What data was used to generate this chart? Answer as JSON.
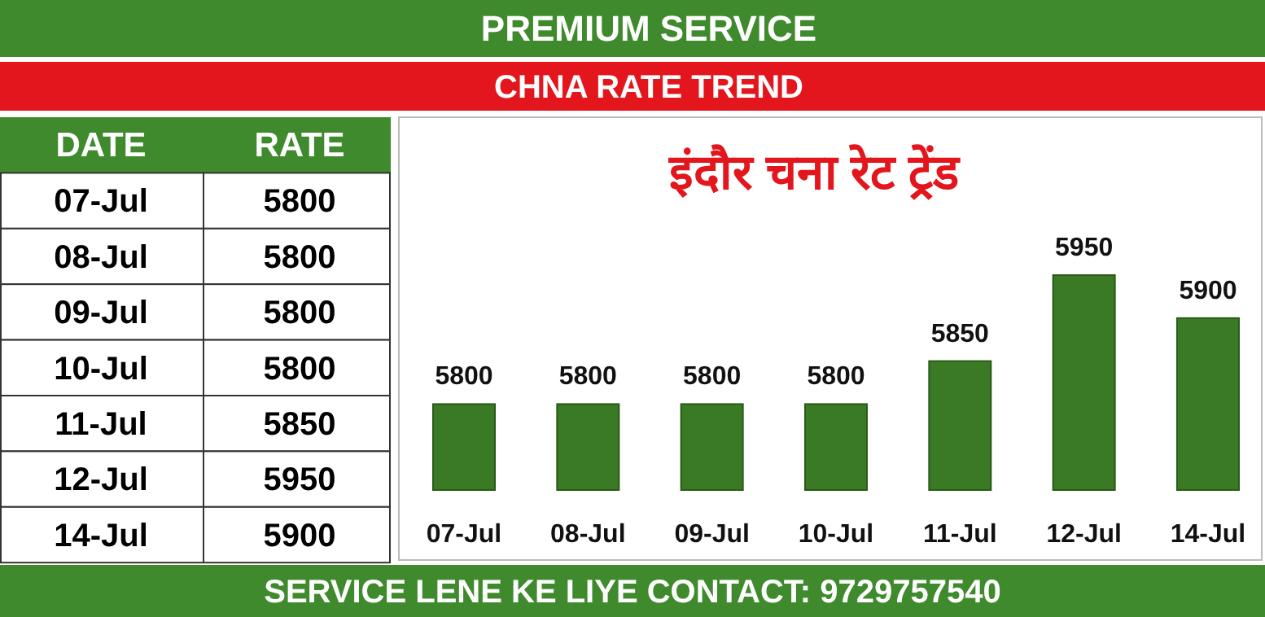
{
  "chart_data": [
    {
      "type": "other",
      "annotations": [
        "DATE",
        "RATE",
        "5800",
        "5800",
        "5800",
        "5800",
        "5850",
        "5950",
        "5900"
      ],
      "categories": [
        "07-Jul",
        "08-Jul",
        "09-Jul",
        "10-Jul",
        "11-Jul",
        "12-Jul",
        "14-Jul"
      ]
    },
    {
      "type": "bar",
      "title": "इंदौर चना रेट ट्रेंड",
      "subtitle": "CHNA RATE TREND",
      "annotations": [
        "PREMIUM SERVICE",
        "SERVICE LENE KE LIYE CONTACT: 9729757540"
      ],
      "categories": [
        "07-Jul",
        "08-Jul",
        "09-Jul",
        "10-Jul",
        "11-Jul",
        "12-Jul",
        "14-Jul"
      ],
      "values": [
        5800,
        5800,
        5800,
        5800,
        5850,
        5950,
        5900
      ],
      "color": "#3b7a24",
      "ylim": [
        5700,
        5950
      ],
      "tick_labels": "x",
      "data_labels": true
    }
  ]
}
